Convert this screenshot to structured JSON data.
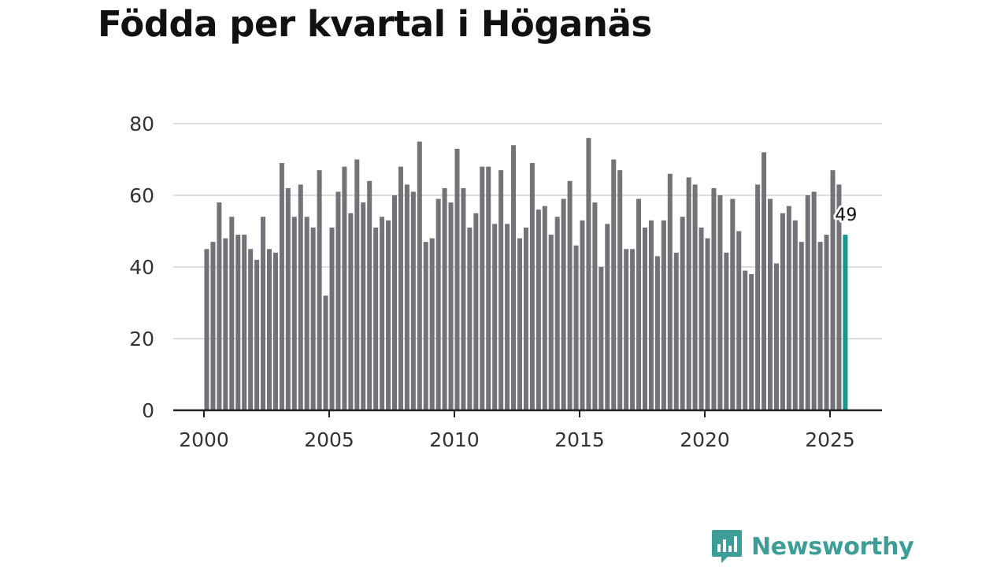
{
  "title": "Födda per kvartal i Höganäs",
  "brand": {
    "name": "Newsworthy",
    "icon": "newsworthy-logo-icon"
  },
  "colors": {
    "bar": "#737278",
    "highlight": "#17968f",
    "grid": "#dcdcdc",
    "axis": "#222222",
    "brand": "#3d9e98"
  },
  "chart_data": {
    "type": "bar",
    "title": "Födda per kvartal i Höganäs",
    "xlabel": "",
    "ylabel": "",
    "start_year": 2000,
    "periods_per_year": 4,
    "ylim": [
      0,
      80
    ],
    "yticks": [
      0,
      20,
      40,
      60,
      80
    ],
    "xticks": [
      "2000",
      "2005",
      "2010",
      "2015",
      "2020",
      "2025"
    ],
    "values": [
      45,
      47,
      58,
      48,
      54,
      49,
      49,
      45,
      42,
      54,
      45,
      44,
      69,
      62,
      54,
      63,
      54,
      51,
      67,
      32,
      51,
      61,
      68,
      55,
      70,
      58,
      64,
      51,
      54,
      53,
      60,
      68,
      63,
      61,
      75,
      47,
      48,
      59,
      62,
      58,
      73,
      62,
      51,
      55,
      68,
      68,
      52,
      67,
      52,
      74,
      48,
      51,
      69,
      56,
      57,
      49,
      54,
      59,
      64,
      46,
      53,
      76,
      58,
      40,
      52,
      70,
      67,
      45,
      45,
      59,
      51,
      53,
      43,
      53,
      66,
      44,
      54,
      65,
      63,
      51,
      48,
      62,
      60,
      44,
      59,
      50,
      39,
      38,
      63,
      72,
      59,
      41,
      55,
      57,
      53,
      47,
      60,
      61,
      47,
      49,
      67,
      63,
      49
    ],
    "highlight_last": true,
    "annotation": "49",
    "grid": true
  }
}
